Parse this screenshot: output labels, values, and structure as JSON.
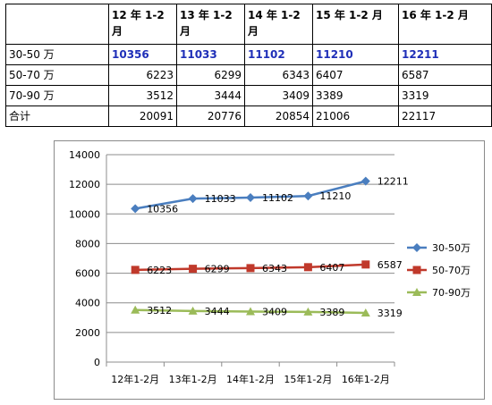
{
  "table": {
    "headers": [
      "",
      "12 年 1-2 月",
      "13 年 1-2 月",
      "14 年 1-2 月",
      "15 年 1-2 月",
      "16 年 1-2 月"
    ],
    "rows": [
      {
        "label": "30-50 万",
        "values": [
          "10356",
          "11033",
          "11102",
          "11210",
          "12211"
        ]
      },
      {
        "label": "50-70 万",
        "values": [
          "6223",
          "6299",
          "6343",
          "6407",
          "6587"
        ]
      },
      {
        "label": "70-90 万",
        "values": [
          "3512",
          "3444",
          "3409",
          "3389",
          "3319"
        ]
      },
      {
        "label": "合计",
        "values": [
          "20091",
          "20776",
          "20854",
          "21006",
          "22117"
        ]
      }
    ]
  },
  "chart_data": {
    "type": "line",
    "categories": [
      "12年1-2月",
      "13年1-2月",
      "14年1-2月",
      "15年1-2月",
      "16年1-2月"
    ],
    "series": [
      {
        "name": "30-50万",
        "values": [
          10356,
          11033,
          11102,
          11210,
          12211
        ],
        "color": "#4a7ebf",
        "marker": "diamond"
      },
      {
        "name": "50-70万",
        "values": [
          6223,
          6299,
          6343,
          6407,
          6587
        ],
        "color": "#c0392b",
        "marker": "square"
      },
      {
        "name": "70-90万",
        "values": [
          3512,
          3444,
          3409,
          3389,
          3319
        ],
        "color": "#9bbb59",
        "marker": "triangle"
      }
    ],
    "ylim": [
      0,
      14000
    ],
    "yticks": [
      0,
      2000,
      4000,
      6000,
      8000,
      10000,
      12000,
      14000
    ],
    "grid": true,
    "legend": "right",
    "data_labels": true,
    "title": "",
    "xlabel": "",
    "ylabel": ""
  }
}
